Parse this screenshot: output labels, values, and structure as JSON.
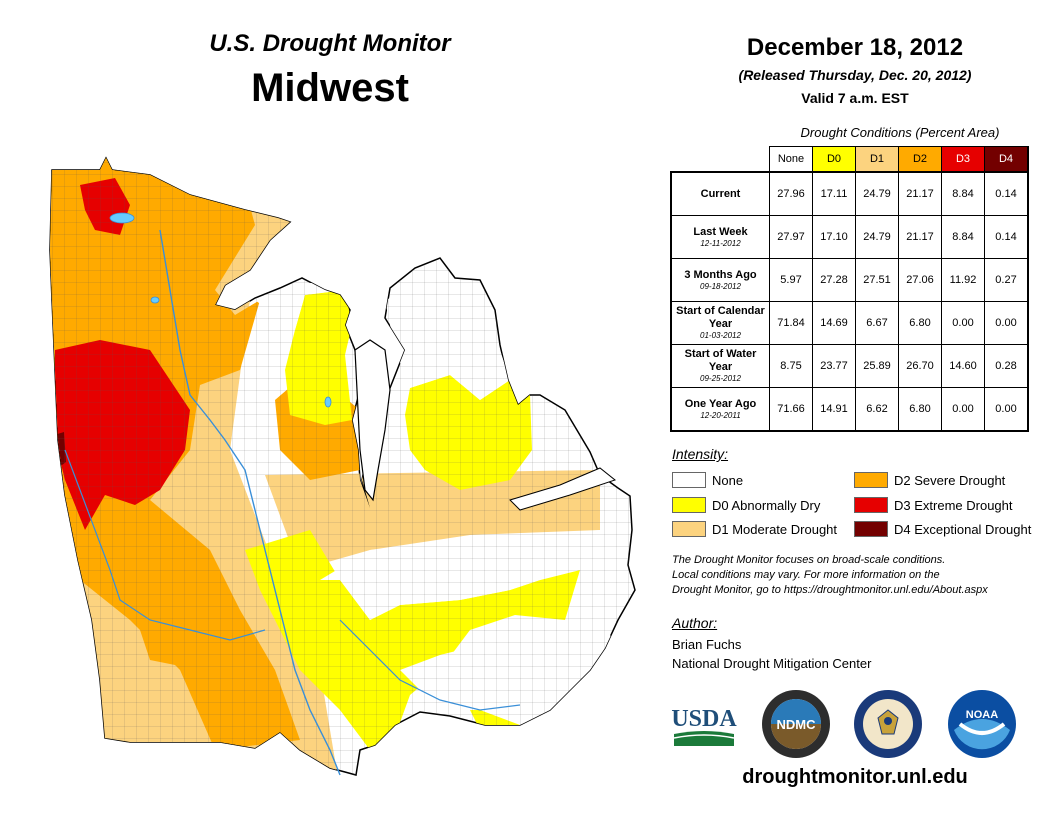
{
  "header": {
    "subtitle": "U.S. Drought Monitor",
    "title": "Midwest",
    "date": "December 18, 2012",
    "released": "(Released Thursday, Dec. 20, 2012)",
    "valid": "Valid 7 a.m. EST"
  },
  "table": {
    "caption": "Drought Conditions (Percent Area)",
    "columns": [
      "None",
      "D0",
      "D1",
      "D2",
      "D3",
      "D4"
    ],
    "column_colors": [
      "#ffffff",
      "#ffff00",
      "#fcd37f",
      "#ffaa00",
      "#e60000",
      "#730000"
    ],
    "column_text_colors": [
      "#000000",
      "#000000",
      "#000000",
      "#000000",
      "#ffffff",
      "#ffffff"
    ],
    "rows": [
      {
        "label": "Current",
        "date": "",
        "values": [
          "27.96",
          "17.11",
          "24.79",
          "21.17",
          "8.84",
          "0.14"
        ]
      },
      {
        "label": "Last Week",
        "date": "12-11-2012",
        "values": [
          "27.97",
          "17.10",
          "24.79",
          "21.17",
          "8.84",
          "0.14"
        ]
      },
      {
        "label": "3 Months Ago",
        "date": "09-18-2012",
        "values": [
          "5.97",
          "27.28",
          "27.51",
          "27.06",
          "11.92",
          "0.27"
        ]
      },
      {
        "label": "Start of Calendar Year",
        "date": "01-03-2012",
        "values": [
          "71.84",
          "14.69",
          "6.67",
          "6.80",
          "0.00",
          "0.00"
        ]
      },
      {
        "label": "Start of Water Year",
        "date": "09-25-2012",
        "values": [
          "8.75",
          "23.77",
          "25.89",
          "26.70",
          "14.60",
          "0.28"
        ]
      },
      {
        "label": "One Year Ago",
        "date": "12-20-2011",
        "values": [
          "71.66",
          "14.91",
          "6.62",
          "6.80",
          "0.00",
          "0.00"
        ]
      }
    ]
  },
  "legend": {
    "title": "Intensity:",
    "items": [
      {
        "label": "None",
        "color": "#ffffff"
      },
      {
        "label": "D0 Abnormally Dry",
        "color": "#ffff00"
      },
      {
        "label": "D1 Moderate Drought",
        "color": "#fcd37f"
      },
      {
        "label": "D2 Severe Drought",
        "color": "#ffaa00"
      },
      {
        "label": "D3 Extreme Drought",
        "color": "#e60000"
      },
      {
        "label": "D4 Exceptional Drought",
        "color": "#730000"
      }
    ]
  },
  "note": {
    "line1": "The Drought Monitor focuses on broad-scale conditions.",
    "line2": "Local conditions may vary. For more information on the",
    "line3": "Drought Monitor, go to https://droughtmonitor.unl.edu/About.aspx"
  },
  "author": {
    "title": "Author:",
    "name": "Brian Fuchs",
    "org": "National Drought Mitigation Center"
  },
  "logos": {
    "usda": "USDA",
    "ndmc": "NDMC",
    "noaa": "NOAA"
  },
  "footer": {
    "url": "droughtmonitor.unl.edu"
  }
}
